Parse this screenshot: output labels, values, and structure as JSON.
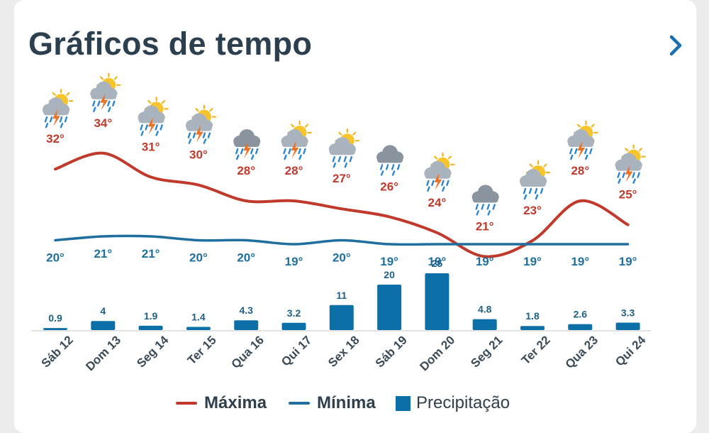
{
  "header": {
    "title": "Gráficos de tempo",
    "more_icon": "chevron-right-icon"
  },
  "colors": {
    "max": "#c0392b",
    "min": "#1e6fa0",
    "precip": "#0d6fa8",
    "title": "#2b3f4f",
    "accent": "#1a6fb0"
  },
  "legend": {
    "max_label": "Máxima",
    "min_label": "Mínima",
    "precip_label": "Precipitação"
  },
  "chart_data": {
    "type": "line+bar",
    "categories": [
      "Sáb 12",
      "Dom 13",
      "Seg 14",
      "Ter 15",
      "Qua 16",
      "Qui 17",
      "Sex 18",
      "Sáb 19",
      "Dom 20",
      "Seg 21",
      "Ter 22",
      "Qua 23",
      "Qui 24"
    ],
    "weather_icons": [
      "thunderstorm-sun-icon",
      "thunderstorm-sun-icon",
      "thunderstorm-sun-icon",
      "thunderstorm-sun-icon",
      "thunderstorm-icon",
      "thunderstorm-sun-icon",
      "rain-sun-icon",
      "rain-cloud-icon",
      "thunderstorm-sun-icon",
      "rain-cloud-icon",
      "rain-sun-icon",
      "thunderstorm-sun-icon",
      "thunderstorm-sun-icon"
    ],
    "series": [
      {
        "name": "Máxima",
        "unit": "°",
        "values": [
          32,
          34,
          31,
          30,
          28,
          28,
          27,
          26,
          24,
          21,
          23,
          28,
          25
        ]
      },
      {
        "name": "Mínima",
        "unit": "°",
        "values": [
          20,
          21,
          21,
          20,
          20,
          19,
          20,
          19,
          19,
          19,
          19,
          19,
          19
        ]
      }
    ],
    "max_labels": [
      "32°",
      "34°",
      "31°",
      "30°",
      "28°",
      "28°",
      "27°",
      "26°",
      "24°",
      "21°",
      "23°",
      "28°",
      "25°"
    ],
    "min_labels": [
      "20°",
      "21°",
      "21°",
      "20°",
      "20°",
      "19°",
      "20°",
      "19°",
      "19°",
      "19°",
      "19°",
      "19°",
      "19°"
    ],
    "precipitation": {
      "name": "Precipitação",
      "values": [
        0.9,
        4,
        1.9,
        1.4,
        4.3,
        3.2,
        11,
        20,
        25,
        4.8,
        1.8,
        2.6,
        3.3
      ],
      "labels": [
        "0.9",
        "4",
        "1.9",
        "1.4",
        "4.3",
        "3.2",
        "11",
        "20",
        "25",
        "4.8",
        "1.8",
        "2.6",
        "3.3"
      ]
    },
    "grid": false,
    "legend_position": "bottom"
  }
}
